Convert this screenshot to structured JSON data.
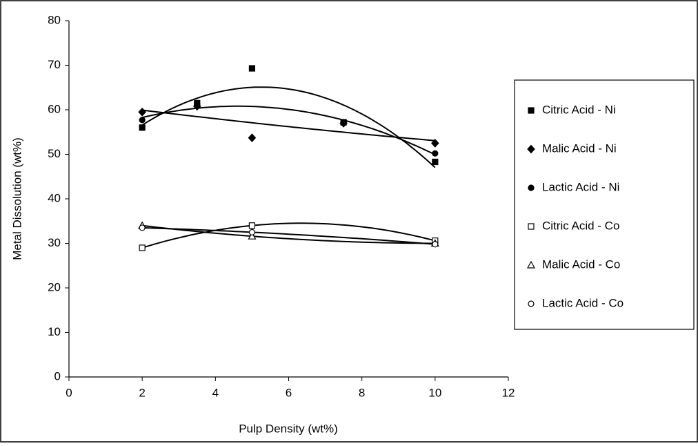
{
  "chart_data": {
    "type": "scatter",
    "xlabel": "Pulp Density (wt%)",
    "ylabel": "Metal Dissolution (wt%)",
    "xlim": [
      0,
      12
    ],
    "xticks": [
      0,
      2,
      4,
      6,
      8,
      10,
      12
    ],
    "ylim": [
      0,
      80
    ],
    "yticks": [
      0,
      10,
      20,
      30,
      40,
      50,
      60,
      70,
      80
    ],
    "grid": false,
    "legend": "right",
    "trendline": {
      "type": "polynomial",
      "order": 2
    },
    "series": [
      {
        "name": "Citric Acid - Ni",
        "color": "#000000",
        "marker": "square",
        "x": [
          2,
          3.5,
          5,
          7.5,
          10
        ],
        "values": [
          56,
          61.5,
          69.3,
          57.2,
          48.3
        ]
      },
      {
        "name": "Malic Acid - Ni",
        "color": "#000000",
        "marker": "diamond",
        "x": [
          2,
          3.5,
          5,
          7.5,
          10
        ],
        "values": [
          59.5,
          60.8,
          53.7,
          57,
          52.5
        ]
      },
      {
        "name": "Lactic Acid - Ni",
        "color": "#000000",
        "marker": "circle",
        "x": [
          2,
          3.5,
          7.5,
          10
        ],
        "values": [
          57.7,
          61.3,
          57,
          50.2
        ]
      },
      {
        "name": "Citric Acid - Co",
        "color": "#000000",
        "marker": "square-open",
        "x": [
          2,
          5,
          10
        ],
        "values": [
          29,
          34,
          30.6
        ]
      },
      {
        "name": "Malic Acid - Co",
        "color": "#000000",
        "marker": "triangle-open",
        "x": [
          2,
          5,
          10
        ],
        "values": [
          34,
          31.6,
          30
        ]
      },
      {
        "name": "Lactic Acid - Co",
        "color": "#000000",
        "marker": "circle-open",
        "x": [
          2,
          5,
          10
        ],
        "values": [
          33.5,
          32.5,
          29.8
        ]
      }
    ]
  }
}
